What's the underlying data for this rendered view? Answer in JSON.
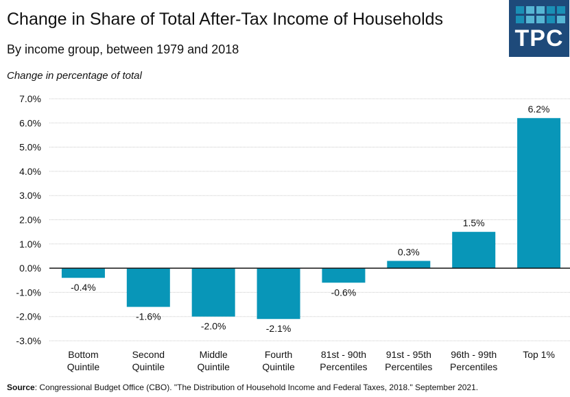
{
  "header": {
    "title": "Change in Share of Total After-Tax Income of Households",
    "subtitle": "By income group, between 1979 and 2018",
    "axis_caption": "Change in percentage of total"
  },
  "logo": {
    "text": "TPC",
    "background": "#1e4a7a",
    "tile_colors": [
      "#1a8fb5",
      "#56b6d4",
      "#56b6d4",
      "#1a8fb5",
      "#1a8fb5",
      "#1a8fb5",
      "#56b6d4",
      "#56b6d4",
      "#1a8fb5",
      "#56b6d4"
    ]
  },
  "footer": {
    "source_label": "Source",
    "source_text": ": Congressional Budget Office (CBO). \"The Distribution of Household Income and Federal Taxes, 2018.\" September 2021."
  },
  "chart_data": {
    "type": "bar",
    "title": "Change in Share of Total After-Tax Income of Households",
    "subtitle": "By income group, between 1979 and 2018",
    "xlabel": "",
    "ylabel": "Change in percentage of total",
    "categories": [
      [
        "Bottom",
        "Quintile"
      ],
      [
        "Second",
        "Quintile"
      ],
      [
        "Middle",
        "Quintile"
      ],
      [
        "Fourth",
        "Quintile"
      ],
      [
        "81st - 90th",
        "Percentiles"
      ],
      [
        "91st - 95th",
        "Percentiles"
      ],
      [
        "96th - 99th",
        "Percentiles"
      ],
      [
        "Top 1%"
      ]
    ],
    "values": [
      -0.4,
      -1.6,
      -2.0,
      -2.1,
      -0.6,
      0.3,
      1.5,
      6.2
    ],
    "data_labels": [
      "-0.4%",
      "-1.6%",
      "-2.0%",
      "-2.1%",
      "-0.6%",
      "0.3%",
      "1.5%",
      "6.2%"
    ],
    "ylim": [
      -3.0,
      7.0
    ],
    "yticks": [
      7.0,
      6.0,
      5.0,
      4.0,
      3.0,
      2.0,
      1.0,
      0.0,
      -1.0,
      -2.0,
      -3.0
    ],
    "ytick_labels": [
      "7.0%",
      "6.0%",
      "5.0%",
      "4.0%",
      "3.0%",
      "2.0%",
      "1.0%",
      "0.0%",
      "-1.0%",
      "-2.0%",
      "-3.0%"
    ],
    "grid": true,
    "legend": "none",
    "bar_color": "#0896b8"
  }
}
